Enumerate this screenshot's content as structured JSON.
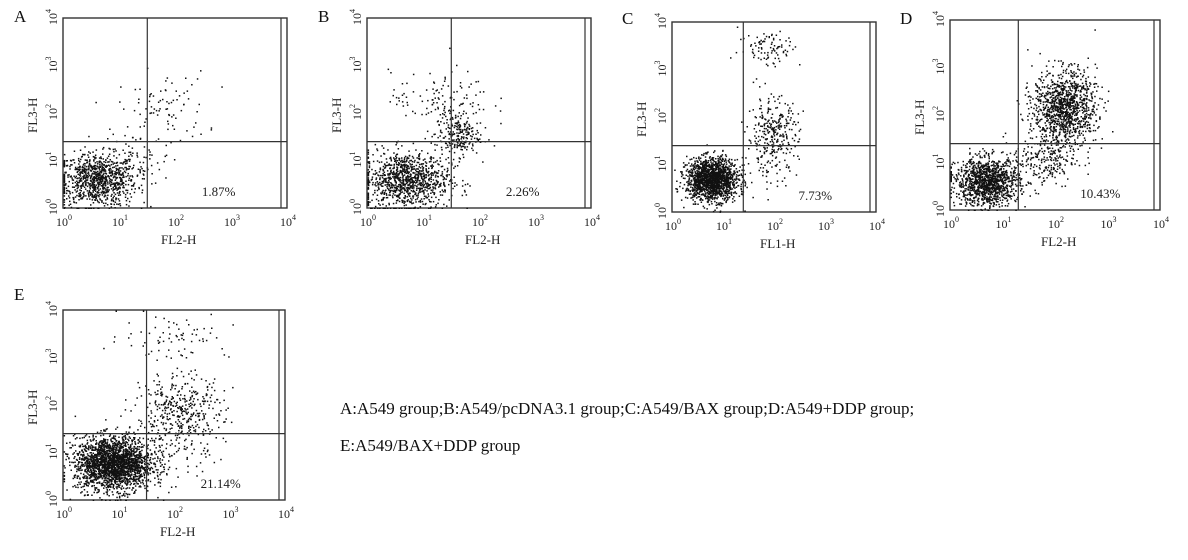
{
  "chart_data": [
    {
      "type": "scatter",
      "panel": "A",
      "xlabel": "FL2-H",
      "ylabel": "FL3-H",
      "xscale": "log",
      "yscale": "log",
      "xlim": [
        1,
        10000
      ],
      "ylim": [
        1,
        10000
      ],
      "xticks": [
        "10",
        "10",
        "10",
        "10",
        "10"
      ],
      "xtick_exponents": [
        "0",
        "1",
        "2",
        "3",
        "4"
      ],
      "yticks": [
        "10",
        "10",
        "10",
        "10",
        "10"
      ],
      "ytick_exponents": [
        "0",
        "1",
        "2",
        "3",
        "4"
      ],
      "quadrant_gates": {
        "x": 32,
        "y": 25
      },
      "annotation": "1.87%",
      "populations": [
        {
          "x_center": 4,
          "y_center": 4,
          "x_spread": 0.35,
          "y_spread": 0.28,
          "n": 900
        },
        {
          "x_center": 60,
          "y_center": 120,
          "x_spread": 0.4,
          "y_spread": 0.4,
          "n": 90
        },
        {
          "x_center": 20,
          "y_center": 10,
          "x_spread": 0.3,
          "y_spread": 0.3,
          "n": 60
        }
      ]
    },
    {
      "type": "scatter",
      "panel": "B",
      "xlabel": "FL2-H",
      "ylabel": "FL3-H",
      "xscale": "log",
      "yscale": "log",
      "xlim": [
        1,
        10000
      ],
      "ylim": [
        1,
        10000
      ],
      "xticks": [
        "10",
        "10",
        "10",
        "10",
        "10"
      ],
      "xtick_exponents": [
        "0",
        "1",
        "2",
        "3",
        "4"
      ],
      "yticks": [
        "10",
        "10",
        "10",
        "10",
        "10"
      ],
      "ytick_exponents": [
        "0",
        "1",
        "2",
        "3",
        "4"
      ],
      "quadrant_gates": {
        "x": 32,
        "y": 25
      },
      "annotation": "2.26%",
      "populations": [
        {
          "x_center": 5,
          "y_center": 4,
          "x_spread": 0.38,
          "y_spread": 0.3,
          "n": 1000
        },
        {
          "x_center": 40,
          "y_center": 35,
          "x_spread": 0.2,
          "y_spread": 0.22,
          "n": 220
        },
        {
          "x_center": 20,
          "y_center": 200,
          "x_spread": 0.45,
          "y_spread": 0.3,
          "n": 120
        }
      ]
    },
    {
      "type": "scatter",
      "panel": "C",
      "xlabel": "FL1-H",
      "ylabel": "FL3-H",
      "xscale": "log",
      "yscale": "log",
      "xlim": [
        1,
        10000
      ],
      "ylim": [
        1,
        10000
      ],
      "xticks": [
        "10",
        "10",
        "10",
        "10",
        "10"
      ],
      "xtick_exponents": [
        "0",
        "1",
        "2",
        "3",
        "4"
      ],
      "yticks": [
        "10",
        "10",
        "10",
        "10",
        "10"
      ],
      "ytick_exponents": [
        "0",
        "1",
        "2",
        "3",
        "4"
      ],
      "quadrant_gates": {
        "x": 25,
        "y": 25
      },
      "annotation": "7.73%",
      "populations": [
        {
          "x_center": 6,
          "y_center": 5,
          "x_spread": 0.25,
          "y_spread": 0.22,
          "n": 1600
        },
        {
          "x_center": 90,
          "y_center": 40,
          "x_spread": 0.25,
          "y_spread": 0.4,
          "n": 320
        },
        {
          "x_center": 80,
          "y_center": 3000,
          "x_spread": 0.3,
          "y_spread": 0.2,
          "n": 90
        }
      ]
    },
    {
      "type": "scatter",
      "panel": "D",
      "xlabel": "FL2-H",
      "ylabel": "FL3-H",
      "xscale": "log",
      "yscale": "log",
      "xlim": [
        1,
        10000
      ],
      "ylim": [
        1,
        10000
      ],
      "xticks": [
        "10",
        "10",
        "10",
        "10",
        "10"
      ],
      "xtick_exponents": [
        "0",
        "1",
        "2",
        "3",
        "4"
      ],
      "yticks": [
        "10",
        "10",
        "10",
        "10",
        "10"
      ],
      "ytick_exponents": [
        "0",
        "1",
        "2",
        "3",
        "4"
      ],
      "quadrant_gates": {
        "x": 20,
        "y": 25
      },
      "annotation": "10.43%",
      "populations": [
        {
          "x_center": 5,
          "y_center": 4,
          "x_spread": 0.3,
          "y_spread": 0.25,
          "n": 1200
        },
        {
          "x_center": 150,
          "y_center": 150,
          "x_spread": 0.3,
          "y_spread": 0.38,
          "n": 1100
        },
        {
          "x_center": 60,
          "y_center": 12,
          "x_spread": 0.3,
          "y_spread": 0.3,
          "n": 250
        }
      ]
    },
    {
      "type": "scatter",
      "panel": "E",
      "xlabel": "FL2-H",
      "ylabel": "FL3-H",
      "xscale": "log",
      "yscale": "log",
      "xlim": [
        1,
        10000
      ],
      "ylim": [
        1,
        10000
      ],
      "xticks": [
        "10",
        "10",
        "10",
        "10",
        "10"
      ],
      "xtick_exponents": [
        "0",
        "1",
        "2",
        "3",
        "4"
      ],
      "yticks": [
        "10",
        "10",
        "10",
        "10",
        "10"
      ],
      "ytick_exponents": [
        "0",
        "1",
        "2",
        "3",
        "4"
      ],
      "quadrant_gates": {
        "x": 32,
        "y": 25
      },
      "annotation": "21.14%",
      "populations": [
        {
          "x_center": 8,
          "y_center": 6,
          "x_spread": 0.35,
          "y_spread": 0.28,
          "n": 2200
        },
        {
          "x_center": 120,
          "y_center": 60,
          "x_spread": 0.4,
          "y_spread": 0.45,
          "n": 450
        },
        {
          "x_center": 100,
          "y_center": 3000,
          "x_spread": 0.5,
          "y_spread": 0.25,
          "n": 70
        }
      ]
    }
  ],
  "caption": {
    "line1": "A:A549 group;B:A549/pcDNA3.1 group;C:A549/BAX group;D:A549+DDP group;",
    "line2": "E:A549/BAX+DDP group"
  }
}
